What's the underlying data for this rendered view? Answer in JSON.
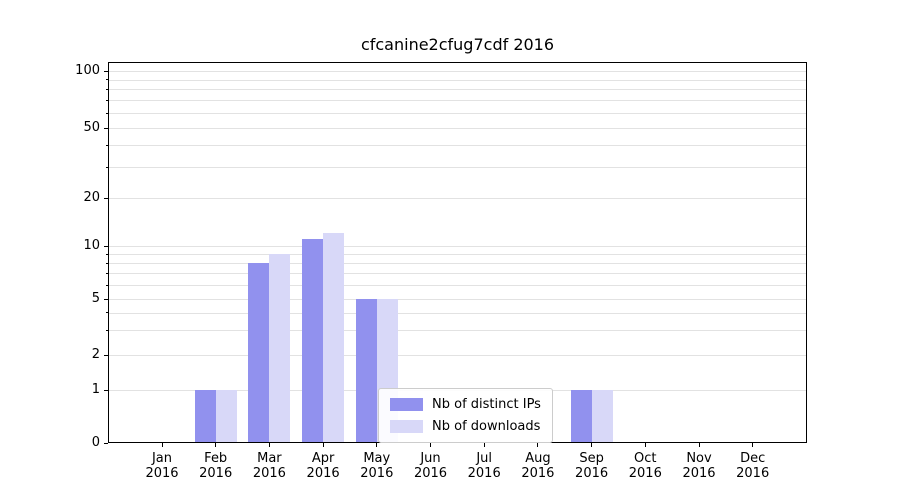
{
  "chart_data": {
    "type": "bar",
    "title": "cfcanine2cfug7cdf 2016",
    "categories": [
      "Jan 2016",
      "Feb 2016",
      "Mar 2016",
      "Apr 2016",
      "May 2016",
      "Jun 2016",
      "Jul 2016",
      "Aug 2016",
      "Sep 2016",
      "Oct 2016",
      "Nov 2016",
      "Dec 2016"
    ],
    "series": [
      {
        "name": "Nb of distinct IPs",
        "color": "#9191ee",
        "values": [
          0,
          1,
          8,
          11,
          5,
          0,
          0,
          0,
          1,
          0,
          0,
          0
        ]
      },
      {
        "name": "Nb of downloads",
        "color": "#d8d8f8",
        "values": [
          0,
          1,
          9,
          12,
          5,
          0,
          0,
          0,
          1,
          0,
          0,
          0
        ]
      }
    ],
    "xlabel": "",
    "ylabel": "",
    "yscale": "symlog",
    "yticks": [
      0,
      1,
      2,
      5,
      10,
      20,
      50,
      100
    ],
    "grid_values": [
      1,
      2,
      3,
      4,
      5,
      6,
      7,
      8,
      9,
      10,
      20,
      30,
      40,
      50,
      60,
      70,
      80,
      90,
      100
    ],
    "ylim": [
      0,
      112
    ],
    "grid": true,
    "legend_position": "lower center"
  }
}
